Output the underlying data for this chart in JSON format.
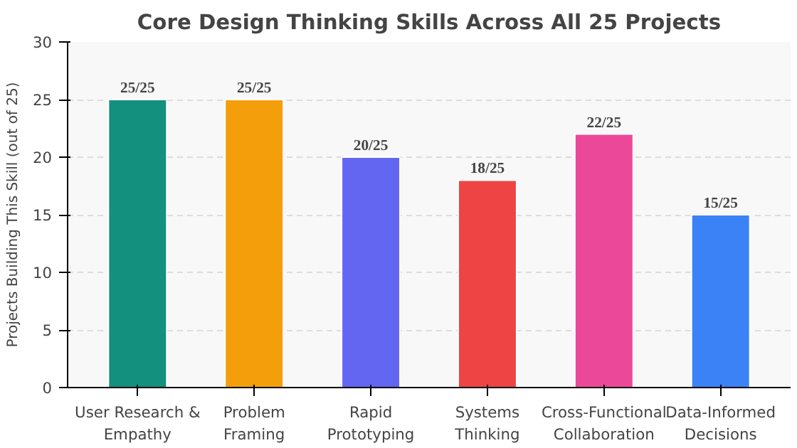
{
  "chart_data": {
    "type": "bar",
    "title": "Core Design Thinking Skills Across All 25 Projects",
    "ylabel": "Projects Building This Skill (out of 25)",
    "categories": [
      "User Research &\nEmpathy",
      "Problem\nFraming",
      "Rapid\nPrototyping",
      "Systems\nThinking",
      "Cross-Functional\nCollaboration",
      "Data-Informed\nDecisions"
    ],
    "values": [
      25,
      25,
      20,
      18,
      22,
      15
    ],
    "colors": [
      "#14907e",
      "#f59e0b",
      "#6366f1",
      "#ef4444",
      "#ec4899",
      "#3b82f6"
    ],
    "value_labels": [
      "25/25",
      "25/25",
      "20/25",
      "18/25",
      "22/25",
      "15/25"
    ],
    "ylim": [
      0,
      30
    ],
    "yticks": [
      0,
      5,
      10,
      15,
      20,
      25,
      30
    ],
    "grid": "y"
  }
}
